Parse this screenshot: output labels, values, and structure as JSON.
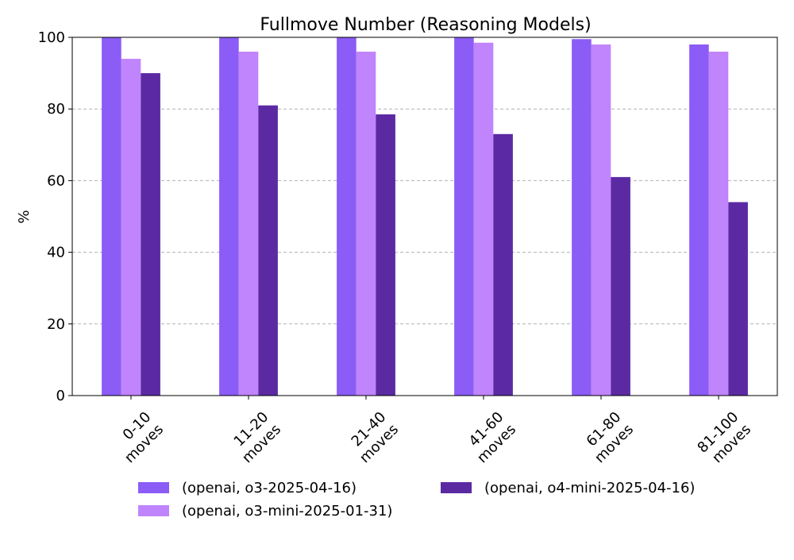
{
  "chart_data": {
    "type": "bar",
    "title": "Fullmove Number (Reasoning Models)",
    "xlabel": "",
    "ylabel": "%",
    "ylim": [
      0,
      100
    ],
    "yticks": [
      0,
      20,
      40,
      60,
      80,
      100
    ],
    "grid": "horizontal dashed",
    "legend_placement": "bottom-center",
    "categories": [
      [
        "0-10",
        "moves"
      ],
      [
        "11-20",
        "moves"
      ],
      [
        "21-40",
        "moves"
      ],
      [
        "41-60",
        "moves"
      ],
      [
        "61-80",
        "moves"
      ],
      [
        "81-100",
        "moves"
      ]
    ],
    "series": [
      {
        "name": "(openai, o3-2025-04-16)",
        "color": "#8b5cf6",
        "values": [
          100,
          100,
          100,
          100,
          99.5,
          98
        ]
      },
      {
        "name": "(openai, o3-mini-2025-01-31)",
        "color": "#c084fc",
        "values": [
          94,
          96,
          96,
          98.5,
          98,
          96
        ]
      },
      {
        "name": "(openai, o4-mini-2025-04-16)",
        "color": "#5b2aa3",
        "values": [
          90,
          81,
          78.5,
          73,
          61,
          54
        ]
      }
    ]
  }
}
